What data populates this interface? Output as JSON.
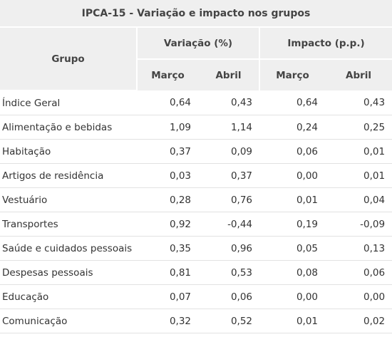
{
  "table": {
    "title": "IPCA-15 - Variação e impacto nos grupos",
    "group_header": "Grupo",
    "variation_header": "Variação (%)",
    "impact_header": "Impacto (p.p.)",
    "sub_headers": [
      "Março",
      "Abril",
      "Março",
      "Abril"
    ],
    "rows": [
      {
        "grupo": "Índice Geral",
        "var_marco": "0,64",
        "var_abril": "0,43",
        "imp_marco": "0,64",
        "imp_abril": "0,43"
      },
      {
        "grupo": "Alimentação e bebidas",
        "var_marco": "1,09",
        "var_abril": "1,14",
        "imp_marco": "0,24",
        "imp_abril": "0,25"
      },
      {
        "grupo": "Habitação",
        "var_marco": "0,37",
        "var_abril": "0,09",
        "imp_marco": "0,06",
        "imp_abril": "0,01"
      },
      {
        "grupo": "Artigos de residência",
        "var_marco": "0,03",
        "var_abril": "0,37",
        "imp_marco": "0,00",
        "imp_abril": "0,01"
      },
      {
        "grupo": "Vestuário",
        "var_marco": "0,28",
        "var_abril": "0,76",
        "imp_marco": "0,01",
        "imp_abril": "0,04"
      },
      {
        "grupo": "Transportes",
        "var_marco": "0,92",
        "var_abril": "-0,44",
        "imp_marco": "0,19",
        "imp_abril": "-0,09"
      },
      {
        "grupo": "Saúde e cuidados pessoais",
        "var_marco": "0,35",
        "var_abril": "0,96",
        "imp_marco": "0,05",
        "imp_abril": "0,13"
      },
      {
        "grupo": "Despesas pessoais",
        "var_marco": "0,81",
        "var_abril": "0,53",
        "imp_marco": "0,08",
        "imp_abril": "0,06"
      },
      {
        "grupo": "Educação",
        "var_marco": "0,07",
        "var_abril": "0,06",
        "imp_marco": "0,00",
        "imp_abril": "0,00"
      },
      {
        "grupo": "Comunicação",
        "var_marco": "0,32",
        "var_abril": "0,52",
        "imp_marco": "0,01",
        "imp_abril": "0,02"
      }
    ]
  }
}
